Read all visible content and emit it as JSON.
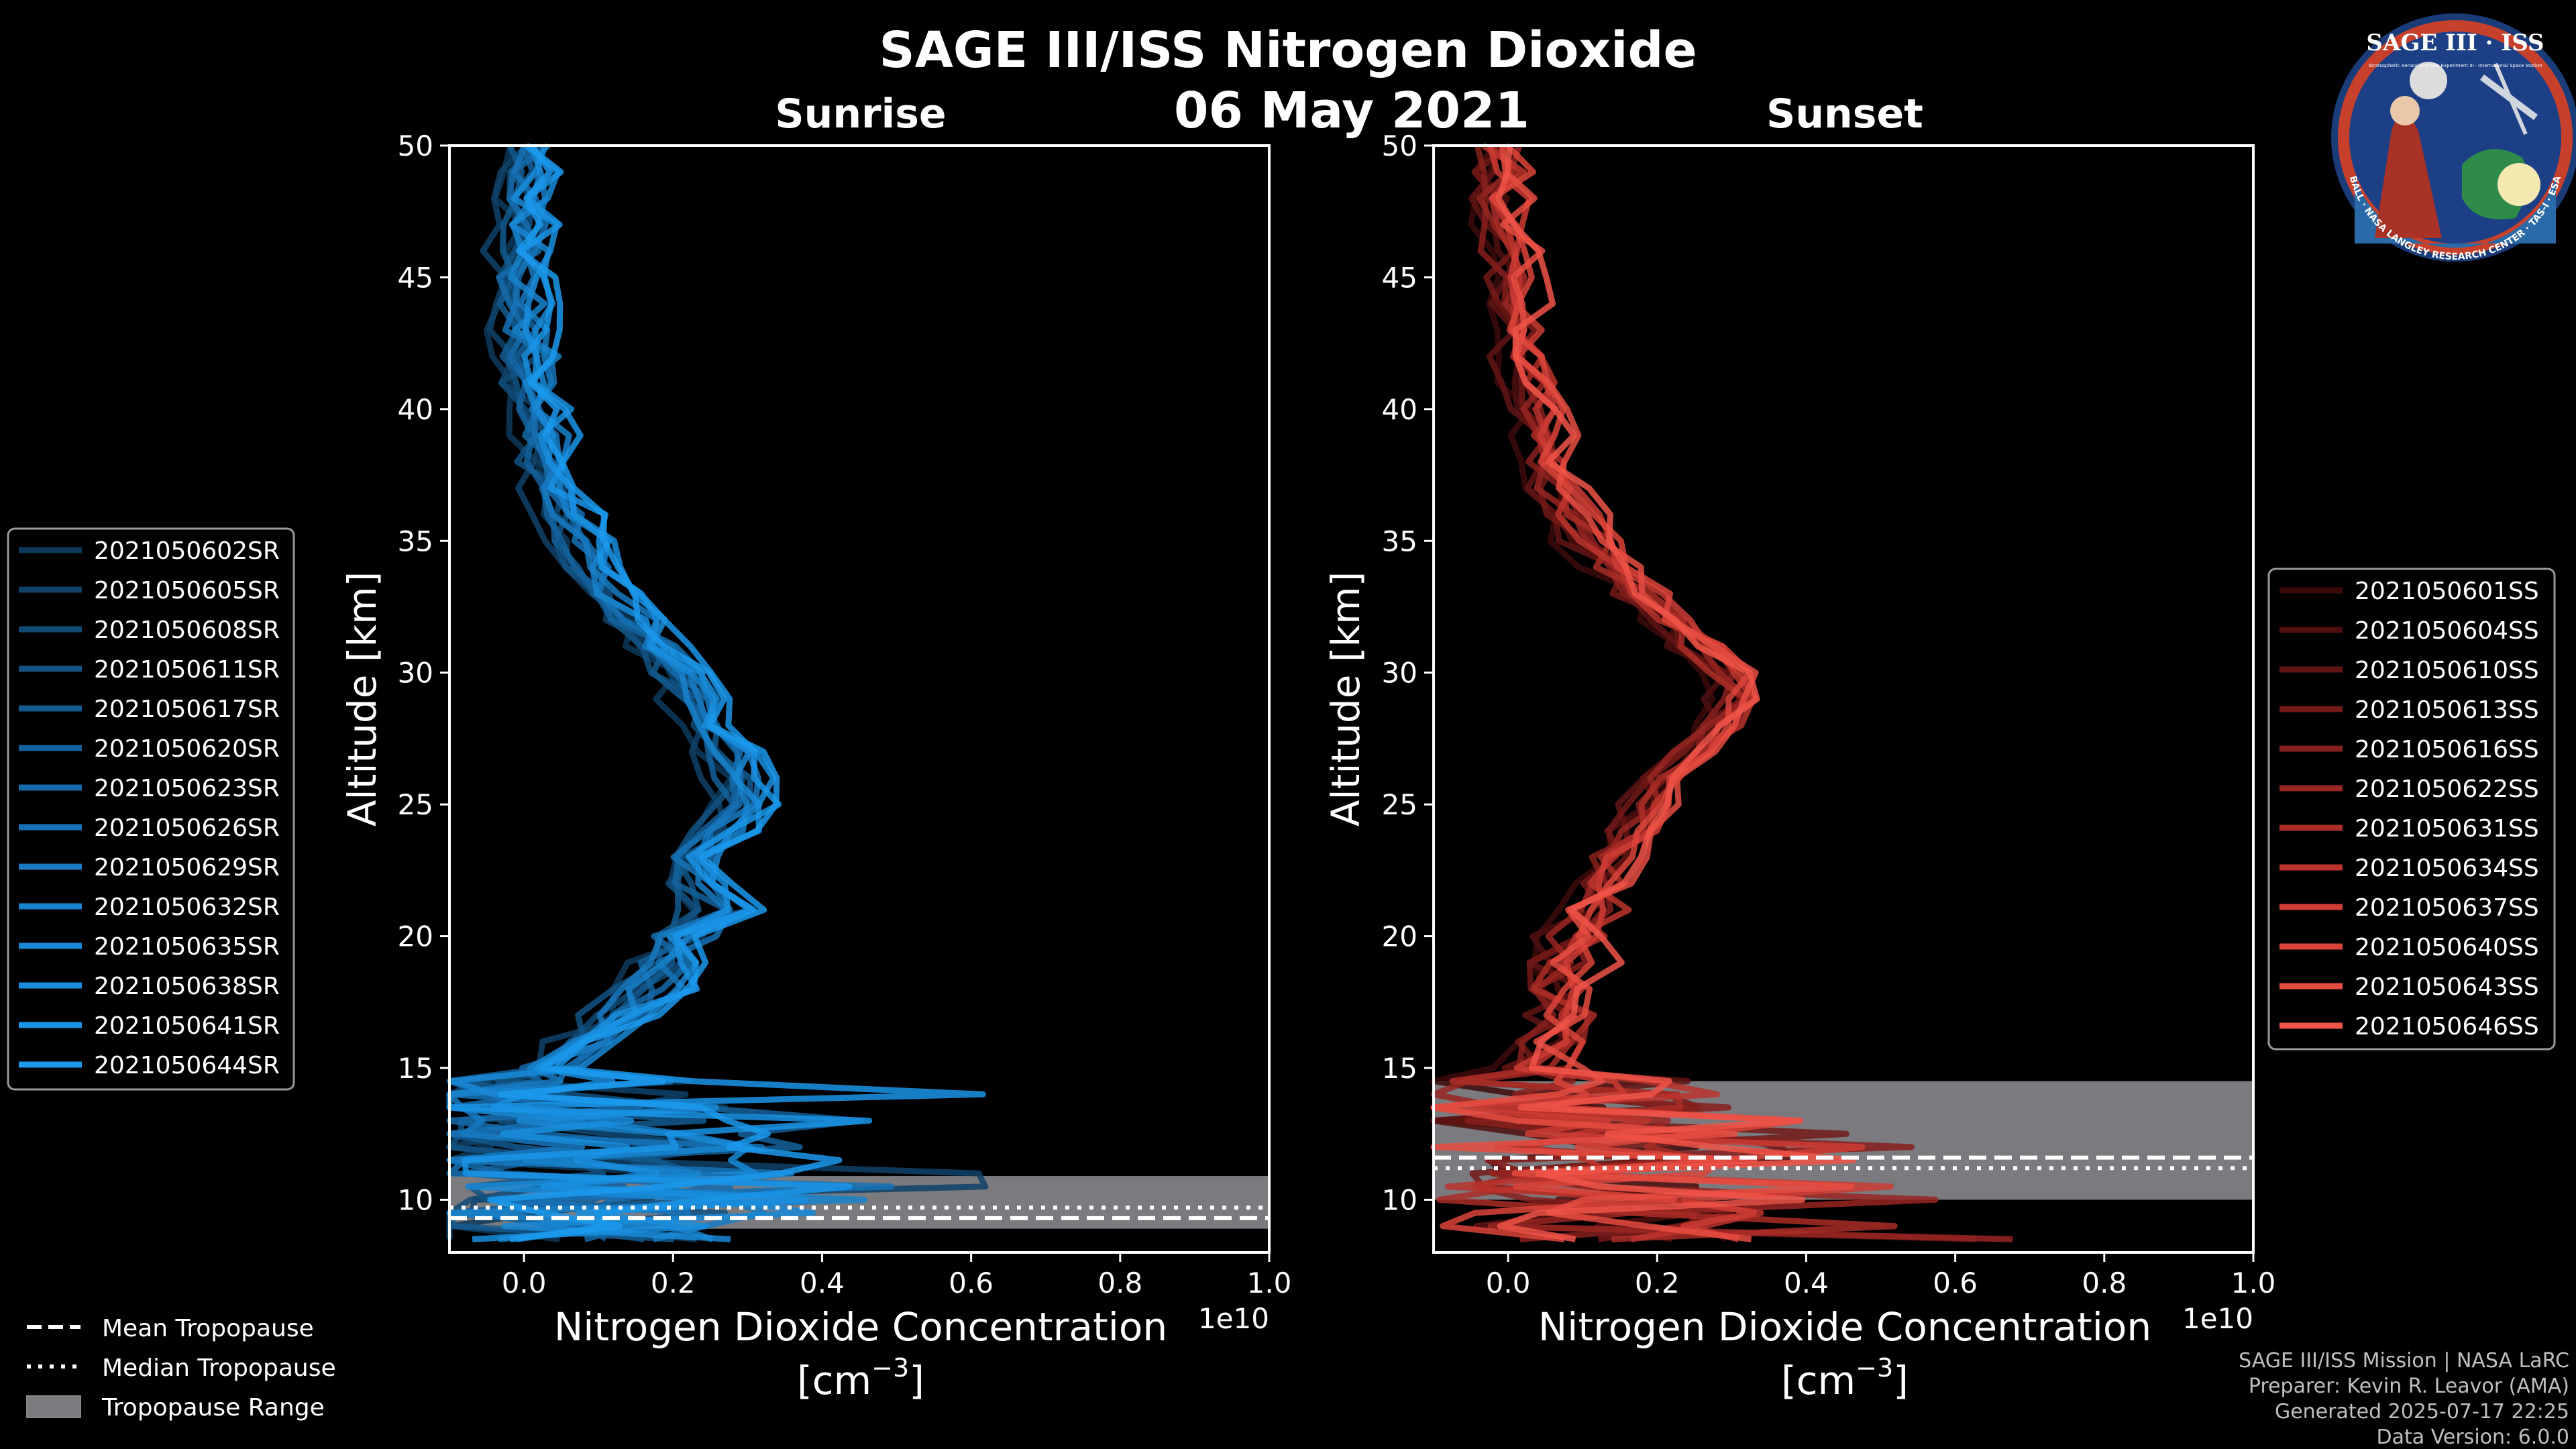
{
  "title": "SAGE III/ISS Nitrogen Dioxide",
  "date": "06 May 2021",
  "footer": [
    "SAGE III/ISS Mission | NASA LaRC",
    "Preparer: Kevin R. Leavor (AMA)",
    "Generated 2025-07-17 22:25",
    "Data Version: 6.0.0"
  ],
  "logo": {
    "name": "SAGE III · ISS",
    "ring_text": "BALL · NASA LANGLEY RESEARCH CENTER · TAS-I · ESA",
    "subtitle": "Stratospheric Aerosol and Gas Experiment III · International Space Station"
  },
  "tropo_legend": [
    {
      "label": "Mean Tropopause",
      "style": "dashed"
    },
    {
      "label": "Median Tropopause",
      "style": "dotted"
    },
    {
      "label": "Tropopause Range",
      "style": "patch"
    }
  ],
  "chart_data": [
    {
      "type": "line",
      "panel": "Sunrise",
      "title": "Sunrise",
      "xlabel": "Nitrogen Dioxide Concentration",
      "xlabel_unit": "[cm",
      "xlabel_exp": "−3",
      "xlabel_close": "]",
      "ylabel": "Altitude [km]",
      "xlim": [
        -0.1,
        1.0
      ],
      "ylim": [
        8,
        50
      ],
      "x_scale_label": "1e10",
      "xticks": [
        0.0,
        0.2,
        0.4,
        0.6,
        0.8,
        1.0
      ],
      "xtick_labels": [
        "0.0",
        "0.2",
        "0.4",
        "0.6",
        "0.8",
        "1.0"
      ],
      "yticks": [
        10,
        15,
        20,
        25,
        30,
        35,
        40,
        45,
        50
      ],
      "ytick_labels": [
        "10",
        "15",
        "20",
        "25",
        "30",
        "35",
        "40",
        "45",
        "50"
      ],
      "tropopause": {
        "min": 8.9,
        "max": 10.9,
        "mean": 9.3,
        "median": 9.7
      },
      "altitudes": [
        8.5,
        9,
        9.5,
        10,
        10.5,
        11,
        11.5,
        12,
        12.5,
        13,
        13.5,
        14,
        14.5,
        15,
        16,
        17,
        18,
        19,
        20,
        21,
        22,
        23,
        24,
        25,
        26,
        27,
        28,
        29,
        30,
        31,
        32,
        33,
        34,
        35,
        36,
        37,
        38,
        39,
        40,
        41,
        42,
        43,
        44,
        45,
        46,
        47,
        48,
        49,
        50
      ],
      "base_profile": [
        0.08,
        0.1,
        0.07,
        0.12,
        0.09,
        0.11,
        0.06,
        0.1,
        0.07,
        0.05,
        0.06,
        0.04,
        0.05,
        0.05,
        0.09,
        0.13,
        0.17,
        0.2,
        0.22,
        0.26,
        0.24,
        0.23,
        0.27,
        0.3,
        0.29,
        0.27,
        0.25,
        0.23,
        0.21,
        0.18,
        0.15,
        0.12,
        0.1,
        0.08,
        0.06,
        0.045,
        0.035,
        0.03,
        0.025,
        0.015,
        0.01,
        0.005,
        0.0,
        0.0,
        -0.005,
        0.0,
        0.0,
        0.005,
        0.01
      ],
      "series": [
        {
          "name": "2021050602SR",
          "color": "#0d3a5c"
        },
        {
          "name": "2021050605SR",
          "color": "#0f4268"
        },
        {
          "name": "2021050608SR",
          "color": "#114a75"
        },
        {
          "name": "2021050611SR",
          "color": "#125282"
        },
        {
          "name": "2021050617SR",
          "color": "#135a8f"
        },
        {
          "name": "2021050620SR",
          "color": "#14629c"
        },
        {
          "name": "2021050623SR",
          "color": "#156aa9"
        },
        {
          "name": "2021050626SR",
          "color": "#1672b6"
        },
        {
          "name": "2021050629SR",
          "color": "#177ac2"
        },
        {
          "name": "2021050632SR",
          "color": "#1882cd"
        },
        {
          "name": "2021050635SR",
          "color": "#1988d6"
        },
        {
          "name": "2021050638SR",
          "color": "#198ede"
        },
        {
          "name": "2021050641SR",
          "color": "#1a94e6"
        },
        {
          "name": "2021050644SR",
          "color": "#1b99ec"
        }
      ]
    },
    {
      "type": "line",
      "panel": "Sunset",
      "title": "Sunset",
      "xlabel": "Nitrogen Dioxide Concentration",
      "xlabel_unit": "[cm",
      "xlabel_exp": "−3",
      "xlabel_close": "]",
      "ylabel": "Altitude [km]",
      "xlim": [
        -0.1,
        1.0
      ],
      "ylim": [
        8,
        50
      ],
      "x_scale_label": "1e10",
      "xticks": [
        0.0,
        0.2,
        0.4,
        0.6,
        0.8,
        1.0
      ],
      "xtick_labels": [
        "0.0",
        "0.2",
        "0.4",
        "0.6",
        "0.8",
        "1.0"
      ],
      "yticks": [
        10,
        15,
        20,
        25,
        30,
        35,
        40,
        45,
        50
      ],
      "ytick_labels": [
        "10",
        "15",
        "20",
        "25",
        "30",
        "35",
        "40",
        "45",
        "50"
      ],
      "tropopause": {
        "min": 10.0,
        "max": 14.5,
        "mean": 11.6,
        "median": 11.2
      },
      "altitudes": [
        8.5,
        9,
        9.5,
        10,
        10.5,
        11,
        11.5,
        12,
        12.5,
        13,
        13.5,
        14,
        14.5,
        15,
        16,
        17,
        18,
        19,
        20,
        21,
        22,
        23,
        24,
        25,
        26,
        27,
        28,
        29,
        30,
        31,
        32,
        33,
        34,
        35,
        36,
        37,
        38,
        39,
        40,
        41,
        42,
        43,
        44,
        45,
        46,
        47,
        48,
        49,
        50
      ],
      "base_profile": [
        0.1,
        0.08,
        0.12,
        0.07,
        0.1,
        0.09,
        0.11,
        0.06,
        0.09,
        0.07,
        0.05,
        0.06,
        0.05,
        0.04,
        0.06,
        0.07,
        0.08,
        0.09,
        0.1,
        0.11,
        0.13,
        0.15,
        0.17,
        0.19,
        0.22,
        0.25,
        0.28,
        0.31,
        0.3,
        0.26,
        0.22,
        0.18,
        0.14,
        0.11,
        0.09,
        0.07,
        0.06,
        0.05,
        0.04,
        0.03,
        0.02,
        0.015,
        0.01,
        0.005,
        0.0,
        0.0,
        -0.005,
        -0.005,
        -0.01
      ],
      "series": [
        {
          "name": "2021050601SS",
          "color": "#3d0a0a"
        },
        {
          "name": "2021050604SS",
          "color": "#4f0f0f"
        },
        {
          "name": "2021050610SS",
          "color": "#611414"
        },
        {
          "name": "2021050613SS",
          "color": "#731a18"
        },
        {
          "name": "2021050616SS",
          "color": "#86201d"
        },
        {
          "name": "2021050622SS",
          "color": "#982622"
        },
        {
          "name": "2021050631SS",
          "color": "#aa2d27"
        },
        {
          "name": "2021050634SS",
          "color": "#bc342d"
        },
        {
          "name": "2021050637SS",
          "color": "#cd3c34"
        },
        {
          "name": "2021050640SS",
          "color": "#db443a"
        },
        {
          "name": "2021050643SS",
          "color": "#e64c41"
        },
        {
          "name": "2021050646SS",
          "color": "#f05448"
        }
      ]
    }
  ]
}
